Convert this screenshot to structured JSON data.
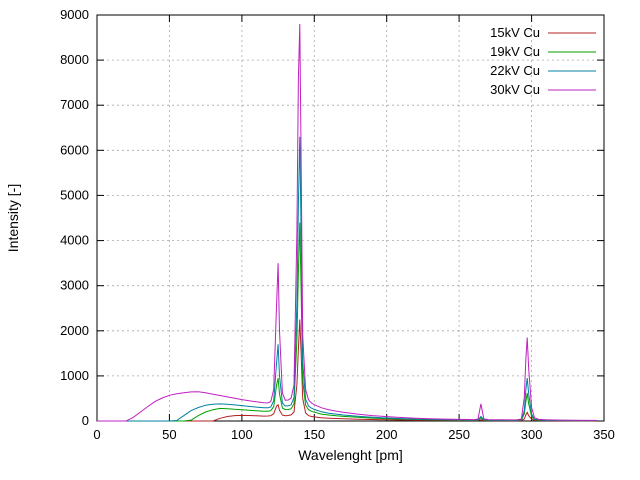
{
  "chart_data": {
    "type": "line",
    "title": "",
    "xlabel": "Wavelenght [pm]",
    "ylabel": "Intensity [-]",
    "xlim": [
      0,
      350
    ],
    "ylim": [
      0,
      9000
    ],
    "xticks": [
      0,
      50,
      100,
      150,
      200,
      250,
      300,
      350
    ],
    "yticks": [
      0,
      1000,
      2000,
      3000,
      4000,
      5000,
      6000,
      7000,
      8000,
      9000
    ],
    "grid": true,
    "legend_position": "top-right-inside",
    "x": [
      0,
      10,
      20,
      25,
      30,
      35,
      40,
      45,
      50,
      55,
      60,
      65,
      70,
      75,
      80,
      85,
      90,
      95,
      100,
      105,
      110,
      115,
      118,
      120,
      122,
      124,
      125,
      126,
      128,
      130,
      132,
      134,
      136,
      138,
      139,
      140,
      141,
      142,
      144,
      146,
      148,
      150,
      155,
      160,
      165,
      170,
      180,
      190,
      200,
      210,
      220,
      230,
      240,
      250,
      255,
      260,
      263,
      265,
      267,
      270,
      280,
      285,
      290,
      293,
      295,
      296,
      297,
      298,
      300,
      302,
      305,
      310,
      320,
      330,
      340,
      345
    ],
    "series": [
      {
        "name": "15kV Cu",
        "color": "#b22222",
        "values": [
          0,
          0,
          0,
          0,
          0,
          0,
          0,
          0,
          0,
          0,
          0,
          0,
          0,
          0,
          0,
          60,
          100,
          120,
          125,
          122,
          115,
          108,
          110,
          118,
          160,
          330,
          360,
          240,
          130,
          118,
          122,
          135,
          200,
          800,
          1600,
          2250,
          1450,
          500,
          180,
          120,
          100,
          90,
          72,
          62,
          55,
          50,
          40,
          33,
          27,
          22,
          18,
          15,
          13,
          11,
          10,
          10,
          12,
          30,
          12,
          10,
          9,
          9,
          9,
          12,
          45,
          130,
          190,
          120,
          40,
          15,
          10,
          8,
          7,
          6,
          5,
          5
        ]
      },
      {
        "name": "19kV Cu",
        "color": "#00a000",
        "values": [
          0,
          0,
          0,
          0,
          0,
          0,
          0,
          0,
          0,
          0,
          0,
          20,
          120,
          200,
          250,
          280,
          272,
          260,
          250,
          238,
          226,
          215,
          215,
          228,
          320,
          800,
          950,
          600,
          285,
          252,
          256,
          270,
          380,
          1800,
          3300,
          4400,
          2800,
          900,
          350,
          252,
          215,
          195,
          152,
          132,
          116,
          102,
          82,
          64,
          52,
          42,
          34,
          28,
          23,
          19,
          18,
          17,
          20,
          70,
          22,
          17,
          14,
          14,
          15,
          22,
          160,
          420,
          620,
          380,
          100,
          32,
          20,
          15,
          11,
          9,
          8,
          8
        ]
      },
      {
        "name": "22kV Cu",
        "color": "#0080a0",
        "values": [
          0,
          0,
          0,
          0,
          0,
          0,
          0,
          0,
          0,
          10,
          120,
          230,
          300,
          350,
          372,
          380,
          372,
          358,
          342,
          324,
          308,
          292,
          292,
          310,
          450,
          1300,
          1700,
          1000,
          400,
          332,
          336,
          360,
          520,
          2600,
          4800,
          6300,
          4000,
          1300,
          480,
          335,
          285,
          258,
          205,
          172,
          152,
          134,
          105,
          82,
          66,
          53,
          43,
          35,
          29,
          24,
          22,
          21,
          26,
          100,
          28,
          21,
          17,
          17,
          18,
          28,
          230,
          680,
          950,
          600,
          150,
          40,
          24,
          18,
          13,
          11,
          10,
          10
        ]
      },
      {
        "name": "30kV Cu",
        "color": "#c020c0",
        "values": [
          0,
          0,
          0,
          80,
          200,
          320,
          430,
          510,
          570,
          605,
          628,
          645,
          650,
          625,
          595,
          565,
          535,
          505,
          475,
          448,
          425,
          405,
          402,
          430,
          700,
          2600,
          3500,
          2000,
          620,
          460,
          465,
          505,
          800,
          4200,
          7600,
          8800,
          5600,
          1900,
          700,
          470,
          400,
          362,
          292,
          250,
          220,
          196,
          152,
          120,
          97,
          78,
          63,
          52,
          43,
          36,
          33,
          31,
          42,
          380,
          46,
          31,
          26,
          25,
          27,
          45,
          520,
          1350,
          1850,
          1150,
          300,
          70,
          36,
          27,
          20,
          16,
          14,
          14
        ]
      }
    ]
  }
}
